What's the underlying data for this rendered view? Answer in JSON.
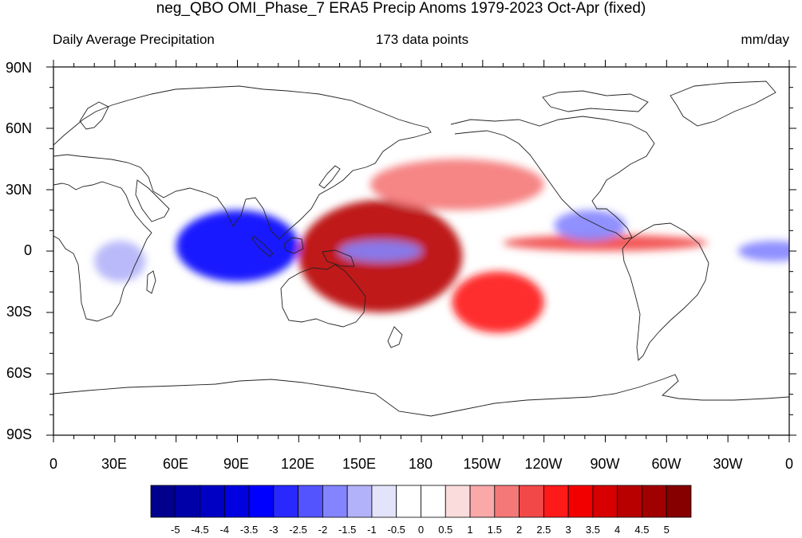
{
  "header": {
    "title": "neg_QBO OMI_Phase_7 ERA5 Precip Anoms 1979-2023 Oct-Apr (fixed)",
    "left": "Daily Average Precipitation",
    "center": "173 data points",
    "right": "mm/day"
  },
  "map": {
    "projection": "cylindrical equidistant",
    "lat_labels": [
      "90N",
      "60N",
      "30N",
      "0",
      "30S",
      "60S",
      "90S"
    ],
    "lon_labels": [
      "0",
      "30E",
      "60E",
      "90E",
      "120E",
      "150E",
      "180",
      "150W",
      "120W",
      "90W",
      "60W",
      "30W",
      "0"
    ],
    "field": "precipitation anomaly",
    "units": "mm/day",
    "anomaly_regions": [
      {
        "sign": "positive",
        "lon": [
          120,
          200
        ],
        "lat": [
          -30,
          25
        ],
        "value": 4,
        "label": "western/central Pacific"
      },
      {
        "sign": "positive",
        "lon": [
          195,
          240
        ],
        "lat": [
          -40,
          -10
        ],
        "value": 2.5,
        "label": "South Pacific Convergence Zone extension"
      },
      {
        "sign": "positive",
        "lon": [
          220,
          320
        ],
        "lat": [
          0,
          8
        ],
        "value": 2,
        "label": "eastern Pacific ITCZ"
      },
      {
        "sign": "positive",
        "lon": [
          155,
          240
        ],
        "lat": [
          20,
          45
        ],
        "value": 1.5,
        "label": "North Pacific"
      },
      {
        "sign": "negative",
        "lon": [
          60,
          120
        ],
        "lat": [
          -15,
          20
        ],
        "value": -3.5,
        "label": "Indian Ocean / Bay of Bengal"
      },
      {
        "sign": "negative",
        "lon": [
          245,
          280
        ],
        "lat": [
          5,
          20
        ],
        "value": -2,
        "label": "eastern tropical Pacific"
      },
      {
        "sign": "negative",
        "lon": [
          335,
          370
        ],
        "lat": [
          -5,
          5
        ],
        "value": -2,
        "label": "tropical Atlantic"
      },
      {
        "sign": "negative",
        "lon": [
          140,
          180
        ],
        "lat": [
          -5,
          5
        ],
        "value": -2,
        "label": "equatorial west Pacific"
      },
      {
        "sign": "negative",
        "lon": [
          20,
          45
        ],
        "lat": [
          -15,
          5
        ],
        "value": -1.5,
        "label": "central Africa"
      }
    ]
  },
  "colorbar": {
    "labels": [
      "-5",
      "-4.5",
      "-4",
      "-3.5",
      "-3",
      "-2.5",
      "-2",
      "-1.5",
      "-1",
      "-0.5",
      "0",
      "0.5",
      "1",
      "1.5",
      "2",
      "2.5",
      "3",
      "3.5",
      "4",
      "4.5",
      "5"
    ],
    "colors": [
      "#00008c",
      "#0000a8",
      "#0000c4",
      "#0000e0",
      "#0000ff",
      "#2929ff",
      "#5454ff",
      "#8484ff",
      "#b2b2fa",
      "#e3e3fb",
      "#ffffff",
      "#ffffff",
      "#fbdcdc",
      "#faa8a8",
      "#f57878",
      "#f24848",
      "#ff1a1a",
      "#f20000",
      "#d60000",
      "#b80000",
      "#a00000",
      "#860000"
    ]
  }
}
